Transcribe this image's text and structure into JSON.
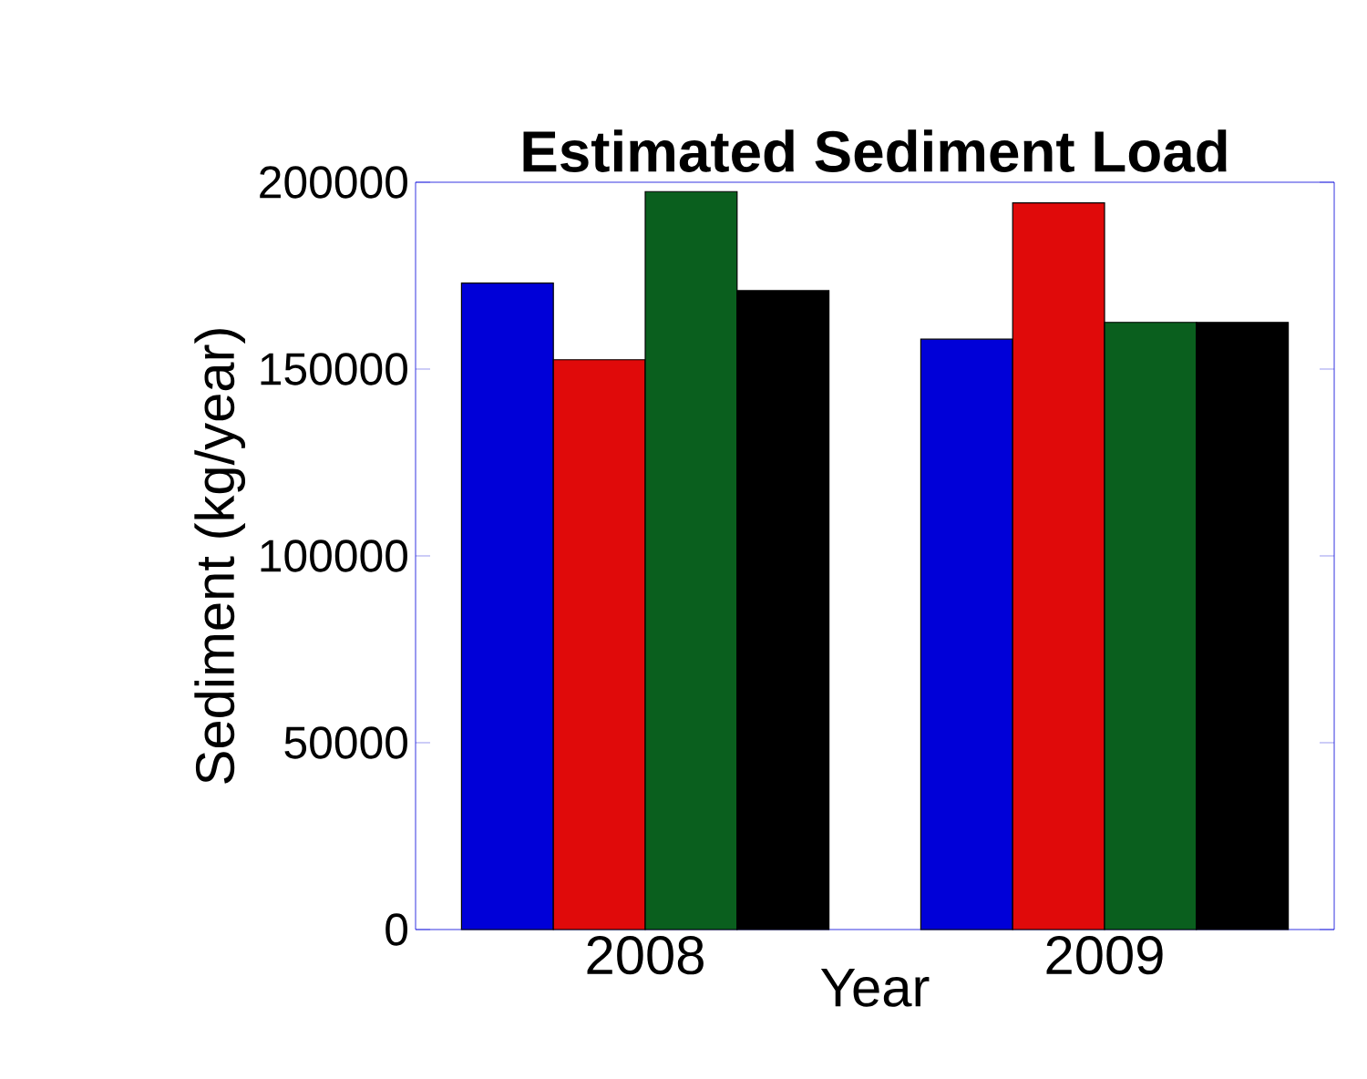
{
  "chart_data": {
    "type": "bar",
    "title": "Estimated Sediment Load",
    "xlabel": "Year",
    "ylabel": "Sediment (kg/year)",
    "categories": [
      "2008",
      "2009"
    ],
    "series": [
      {
        "color": "#0000d8",
        "values": [
          173000,
          158000
        ]
      },
      {
        "color": "#e00a0a",
        "values": [
          152500,
          194500
        ]
      },
      {
        "color": "#0a5f1e",
        "values": [
          197500,
          162500
        ]
      },
      {
        "color": "#000000",
        "values": [
          171000,
          162500
        ]
      }
    ],
    "ylim": [
      0,
      200000
    ],
    "yticks": [
      0,
      50000,
      100000,
      150000,
      200000
    ]
  }
}
